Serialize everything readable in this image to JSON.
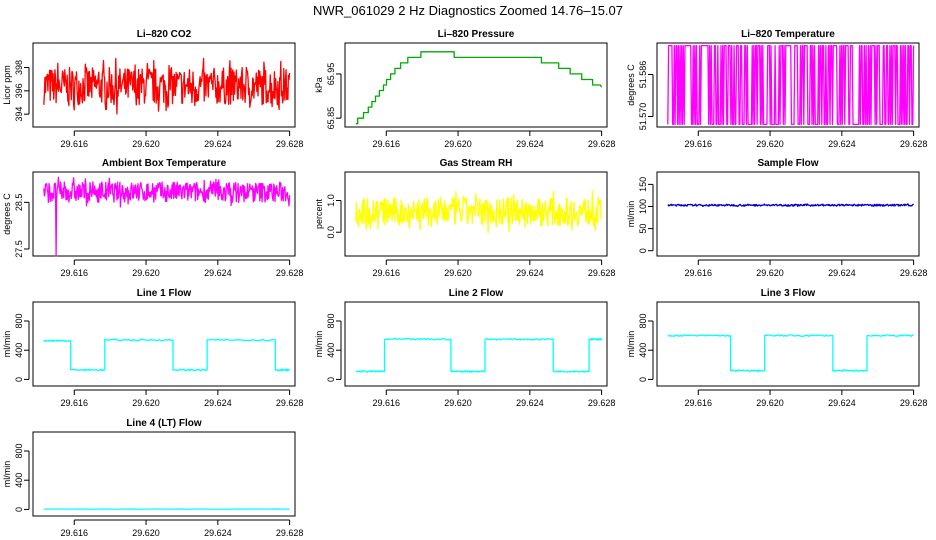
{
  "figure_title": "NWR_061029  2 Hz Diagnostics Zoomed 14.76–15.07",
  "chart_data": [
    {
      "type": "line",
      "title": "Li–820 CO2",
      "ylabel": "Licor ppm",
      "color": "#ff0000",
      "xlim": [
        29.6137,
        29.6283
      ],
      "xticks": [
        "29.616",
        "29.620",
        "29.624",
        "29.628"
      ],
      "yticks": [
        "394",
        "396",
        "398"
      ],
      "ylim": [
        392.9,
        400.1
      ],
      "series": [
        {
          "x": [
            29.6143,
            29.628
          ],
          "y": [
            396.4,
            396.4
          ],
          "noise": 1.6,
          "style": "noise"
        }
      ]
    },
    {
      "type": "line",
      "title": "Li–820 Pressure",
      "ylabel": "kPa",
      "color": "#00aa00",
      "xlim": [
        29.6137,
        29.6283
      ],
      "xticks": [
        "29.616",
        "29.620",
        "29.624",
        "29.628"
      ],
      "yticks": [
        "65.85",
        "65.95"
      ],
      "ylim": [
        65.83,
        66.02
      ],
      "series": [
        {
          "x": [
            29.6143,
            29.6148,
            29.6155,
            29.6163,
            29.6168,
            29.6175,
            29.6185,
            29.6205,
            29.6225,
            29.6243,
            29.6255,
            29.627,
            29.628
          ],
          "y": [
            65.84,
            65.86,
            65.9,
            65.95,
            65.97,
            65.99,
            66.0,
            65.99,
            65.985,
            65.985,
            65.97,
            65.94,
            65.92
          ],
          "style": "step"
        }
      ]
    },
    {
      "type": "line",
      "title": "Li–820 Temperature",
      "ylabel": "degrees C",
      "color": "#ff00ff",
      "xlim": [
        29.6137,
        29.6283
      ],
      "xticks": [
        "29.616",
        "29.620",
        "29.624",
        "29.628"
      ],
      "yticks": [
        "51.570",
        "51.586"
      ],
      "ylim": [
        51.566,
        51.598
      ],
      "series": [
        {
          "x": [
            29.6143,
            29.628
          ],
          "y": [
            51.597,
            51.597
          ],
          "low": 51.567,
          "style": "flip"
        }
      ]
    },
    {
      "type": "line",
      "title": "Ambient Box Temperature",
      "ylabel": "degrees C",
      "color": "#ff00ff",
      "xlim": [
        29.6137,
        29.6283
      ],
      "xticks": [
        "29.616",
        "29.620",
        "29.624",
        "29.628"
      ],
      "yticks": [
        "27.5",
        "28.5"
      ],
      "ylim": [
        27.35,
        29.15
      ],
      "series": [
        {
          "x": [
            29.6143,
            29.628
          ],
          "y": [
            28.72,
            28.72
          ],
          "noise": 0.22,
          "spike": [
            29.615,
            27.35
          ],
          "style": "noise"
        }
      ]
    },
    {
      "type": "line",
      "title": "Gas Stream RH",
      "ylabel": "percent",
      "color": "#ffff00",
      "xlim": [
        29.6137,
        29.6283
      ],
      "xticks": [
        "29.616",
        "29.620",
        "29.624",
        "29.628"
      ],
      "yticks": [
        "0.0",
        "1.0"
      ],
      "ylim": [
        -0.75,
        1.9
      ],
      "series": [
        {
          "x": [
            29.6143,
            29.628
          ],
          "y": [
            0.65,
            0.65
          ],
          "noise": 0.45,
          "style": "noise"
        }
      ]
    },
    {
      "type": "line",
      "title": "Sample Flow",
      "ylabel": "ml/min",
      "color": "#0000cc",
      "xlim": [
        29.6137,
        29.6283
      ],
      "xticks": [
        "29.616",
        "29.620",
        "29.624",
        "29.628"
      ],
      "yticks": [
        "0",
        "50",
        "100",
        "150"
      ],
      "ylim": [
        -12,
        178
      ],
      "series": [
        {
          "x": [
            29.6143,
            29.628
          ],
          "y": [
            103,
            103
          ],
          "noise": 2,
          "style": "noise"
        }
      ]
    },
    {
      "type": "line",
      "title": "Line 1 Flow",
      "ylabel": "ml/min",
      "color": "#00ffff",
      "xlim": [
        29.6137,
        29.6283
      ],
      "xticks": [
        "29.616",
        "29.620",
        "29.624",
        "29.628"
      ],
      "yticks": [
        "0",
        "400",
        "800"
      ],
      "ylim": [
        -90,
        1060
      ],
      "series": [
        {
          "x": [
            29.6143,
            29.6158,
            29.6158,
            29.6177,
            29.6177,
            29.6215,
            29.6215,
            29.6234,
            29.6234,
            29.6272,
            29.6272,
            29.628
          ],
          "y": [
            530,
            530,
            130,
            130,
            540,
            540,
            130,
            130,
            540,
            540,
            130,
            130
          ],
          "noise": 10,
          "style": "line"
        }
      ]
    },
    {
      "type": "line",
      "title": "Line 2 Flow",
      "ylabel": "ml/min",
      "color": "#00ffff",
      "xlim": [
        29.6137,
        29.6283
      ],
      "xticks": [
        "29.616",
        "29.620",
        "29.624",
        "29.628"
      ],
      "yticks": [
        "0",
        "400",
        "800"
      ],
      "ylim": [
        -90,
        1060
      ],
      "series": [
        {
          "x": [
            29.6143,
            29.6159,
            29.6159,
            29.6196,
            29.6196,
            29.6215,
            29.6215,
            29.6253,
            29.6253,
            29.6273,
            29.6273,
            29.628
          ],
          "y": [
            110,
            110,
            550,
            550,
            110,
            110,
            550,
            550,
            110,
            110,
            550,
            550
          ],
          "noise": 10,
          "style": "line"
        }
      ]
    },
    {
      "type": "line",
      "title": "Line 3 Flow",
      "ylabel": "ml/min",
      "color": "#00ffff",
      "xlim": [
        29.6137,
        29.6283
      ],
      "xticks": [
        "29.616",
        "29.620",
        "29.624",
        "29.628"
      ],
      "yticks": [
        "0",
        "400",
        "800"
      ],
      "ylim": [
        -90,
        1060
      ],
      "series": [
        {
          "x": [
            29.6143,
            29.6178,
            29.6178,
            29.6197,
            29.6197,
            29.6235,
            29.6235,
            29.6254,
            29.6254,
            29.628
          ],
          "y": [
            600,
            600,
            120,
            120,
            600,
            600,
            120,
            120,
            600,
            600
          ],
          "noise": 10,
          "style": "line"
        }
      ]
    },
    {
      "type": "line",
      "title": "Line 4 (LT) Flow",
      "ylabel": "ml/min",
      "color": "#00ffff",
      "xlim": [
        29.6137,
        29.6283
      ],
      "xticks": [
        "29.616",
        "29.620",
        "29.624",
        "29.628"
      ],
      "yticks": [
        "0",
        "400",
        "800"
      ],
      "ylim": [
        -90,
        1060
      ],
      "series": [
        {
          "x": [
            29.6143,
            29.628
          ],
          "y": [
            5,
            5
          ],
          "noise": 1,
          "style": "line"
        }
      ]
    }
  ]
}
